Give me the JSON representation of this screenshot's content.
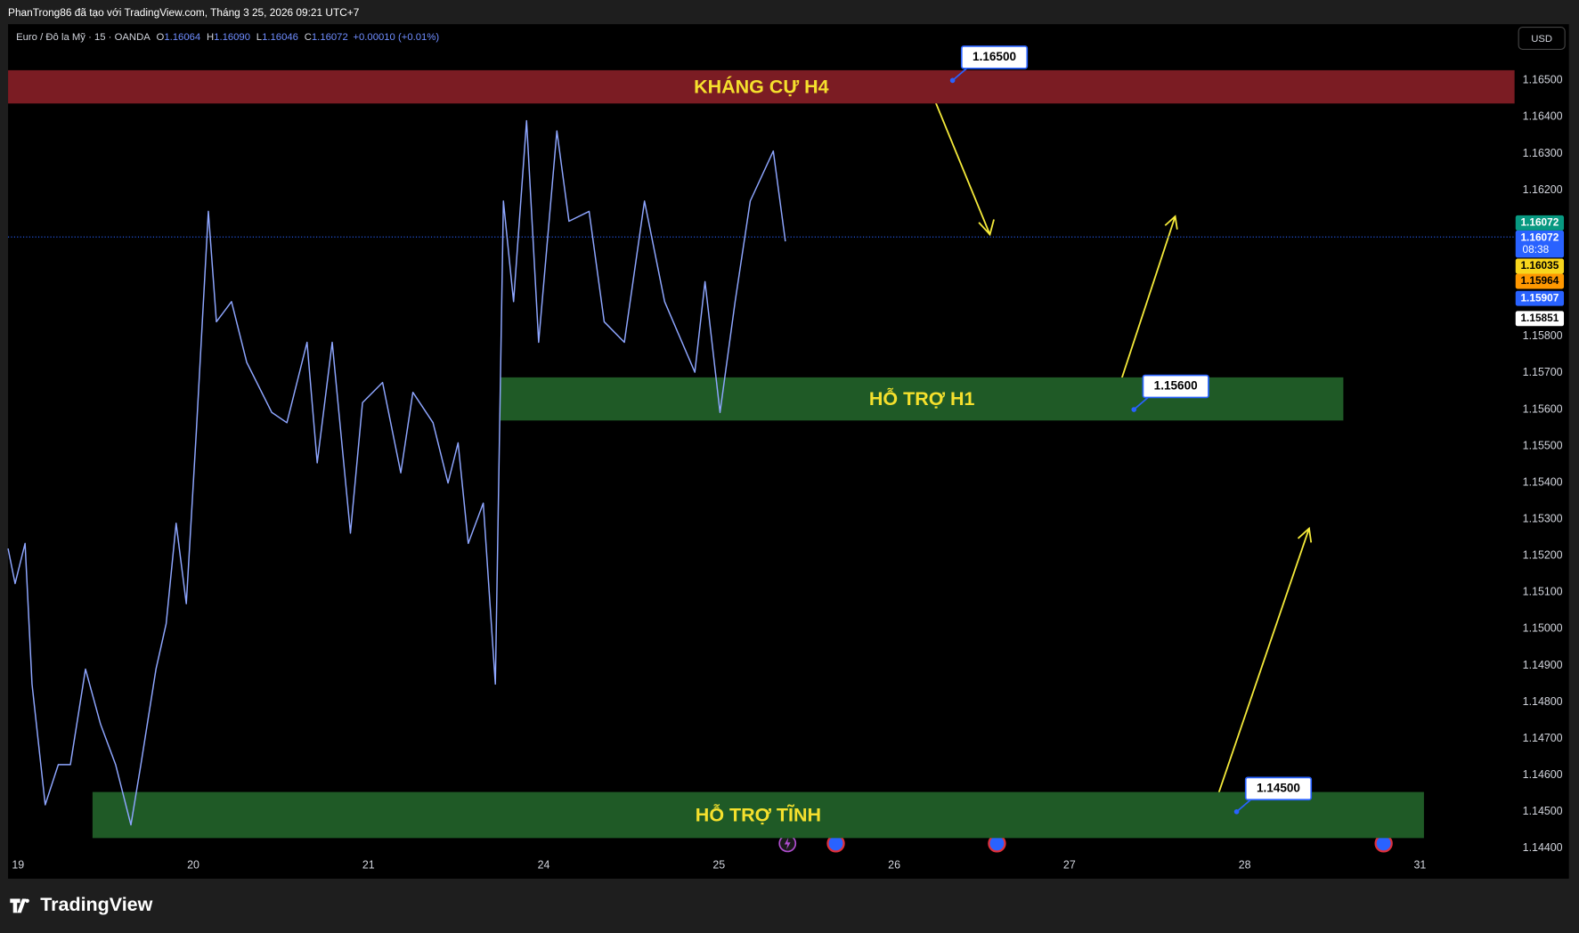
{
  "header": {
    "title": "PhanTrong86 đã tạo với TradingView.com, Tháng 3 25, 2026 09:21 UTC+7",
    "logo": "TradingView"
  },
  "chart_data": {
    "type": "line",
    "symbol": "Euro / Đô la Mỹ · 15 · OANDA",
    "ohlc": [
      {
        "key": "O",
        "value": "1.16064"
      },
      {
        "key": "H",
        "value": "1.16090"
      },
      {
        "key": "L",
        "value": "1.16046"
      },
      {
        "key": "C",
        "value": "1.16072"
      }
    ],
    "change": "+0.00010 (+0.01%)",
    "currency": "USD",
    "color": "#8ea6ff",
    "x": [
      -0.057,
      -0.017,
      0.04,
      0.08,
      0.155,
      0.23,
      0.299,
      0.385,
      0.471,
      0.557,
      0.644,
      0.701,
      0.787,
      0.845,
      0.902,
      0.96,
      1.017,
      1.086,
      1.132,
      1.218,
      1.305,
      1.448,
      1.534,
      1.649,
      1.707,
      1.793,
      1.897,
      1.966,
      2.08,
      2.184,
      2.253,
      2.368,
      2.454,
      2.511,
      2.569,
      2.655,
      2.724,
      2.77,
      2.828,
      2.902,
      2.971,
      3.075,
      3.144,
      3.259,
      3.345,
      3.46,
      3.575,
      3.69,
      3.862,
      3.92,
      4.006,
      4.092,
      4.178,
      4.31,
      4.379
    ],
    "values": [
      1.1522,
      1.15124,
      1.15234,
      1.14849,
      1.14519,
      1.14629,
      1.14629,
      1.1489,
      1.14739,
      1.14629,
      1.14464,
      1.14629,
      1.1489,
      1.15014,
      1.15289,
      1.15069,
      1.15537,
      1.16142,
      1.1584,
      1.15895,
      1.15729,
      1.15592,
      1.15564,
      1.15784,
      1.15454,
      1.15784,
      1.15262,
      1.15619,
      1.15674,
      1.15427,
      1.15647,
      1.15564,
      1.15399,
      1.15509,
      1.15234,
      1.15344,
      1.14849,
      1.1617,
      1.15895,
      1.1639,
      1.15784,
      1.16362,
      1.16115,
      1.16142,
      1.1584,
      1.15784,
      1.1617,
      1.15895,
      1.15702,
      1.1595,
      1.15592,
      1.15895,
      1.1617,
      1.16307,
      1.1606
    ],
    "xlim": [
      -0.057,
      8.54
    ],
    "xticks": [
      {
        "value": 0,
        "label": "19"
      },
      {
        "value": 1,
        "label": "20"
      },
      {
        "value": 2,
        "label": "21"
      },
      {
        "value": 3,
        "label": "24"
      },
      {
        "value": 4,
        "label": "25"
      },
      {
        "value": 5,
        "label": "26"
      },
      {
        "value": 6,
        "label": "27"
      },
      {
        "value": 7,
        "label": "28"
      },
      {
        "value": 8,
        "label": "31"
      }
    ],
    "ylim": [
      1.14317,
      1.16654
    ],
    "yticks": [
      {
        "value": 1.165,
        "label": "1.16500"
      },
      {
        "value": 1.164,
        "label": "1.16400"
      },
      {
        "value": 1.163,
        "label": "1.16300"
      },
      {
        "value": 1.162,
        "label": "1.16200"
      },
      {
        "value": 1.158,
        "label": "1.15800"
      },
      {
        "value": 1.157,
        "label": "1.15700"
      },
      {
        "value": 1.156,
        "label": "1.15600"
      },
      {
        "value": 1.155,
        "label": "1.15500"
      },
      {
        "value": 1.154,
        "label": "1.15400"
      },
      {
        "value": 1.153,
        "label": "1.15300"
      },
      {
        "value": 1.152,
        "label": "1.15200"
      },
      {
        "value": 1.151,
        "label": "1.15100"
      },
      {
        "value": 1.15,
        "label": "1.15000"
      },
      {
        "value": 1.149,
        "label": "1.14900"
      },
      {
        "value": 1.148,
        "label": "1.14800"
      },
      {
        "value": 1.147,
        "label": "1.14700"
      },
      {
        "value": 1.146,
        "label": "1.14600"
      },
      {
        "value": 1.145,
        "label": "1.14500"
      },
      {
        "value": 1.144,
        "label": "1.14400"
      }
    ],
    "grid": false,
    "last_price": 1.16072,
    "zones": [
      {
        "label": "KHÁNG CỰ H4",
        "color": "#7b1c23",
        "low": 1.16437,
        "high": 1.16528,
        "x_from": -0.057,
        "x_to": 8.54
      },
      {
        "label": "HỖ TRỢ H1",
        "color": "#1f5a26",
        "low": 1.1557,
        "high": 1.15688,
        "x_from": 2.753,
        "x_to": 7.563
      },
      {
        "label": "HỖ TRỢ TĨNH",
        "color": "#1f5a26",
        "low": 1.14428,
        "high": 1.14554,
        "x_from": 0.425,
        "x_to": 8.023
      }
    ],
    "callouts": [
      {
        "value": 1.165,
        "label": "1.16500",
        "x": 5.333
      },
      {
        "value": 1.156,
        "label": "1.15600",
        "x": 6.368
      },
      {
        "value": 1.145,
        "label": "1.14500",
        "x": 6.954
      }
    ],
    "price_badges": [
      {
        "label": "1.16072",
        "color": "#089981",
        "text_color": "#ffffff"
      },
      {
        "label": "1.16072",
        "sub": "08:38",
        "color": "#2962ff",
        "text_color": "#ffffff"
      },
      {
        "label": "1.16035",
        "color": "#f7d51d",
        "text_color": "#000000"
      },
      {
        "label": "1.15964",
        "color": "#ff9800",
        "text_color": "#000000"
      },
      {
        "label": "1.15907",
        "color": "#2962ff",
        "text_color": "#ffffff"
      },
      {
        "label": "1.15851",
        "color": "#ffffff",
        "text_color": "#000000"
      }
    ]
  }
}
